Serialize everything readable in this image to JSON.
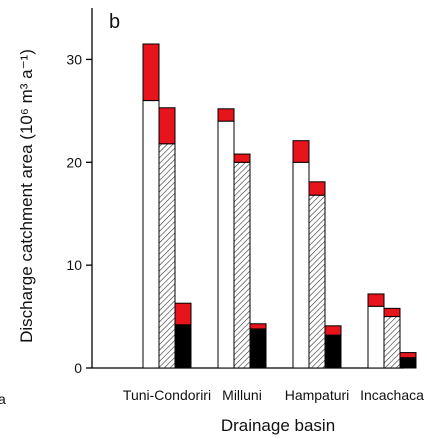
{
  "chart_data": {
    "type": "bar",
    "panel_label": "b",
    "xlabel": "Drainage basin",
    "ylabel": "Discharge catchment area (10⁶ m³ a⁻¹)",
    "ylim": [
      0,
      35
    ],
    "yticks": [
      0,
      10,
      20,
      30
    ],
    "cut_label": "a",
    "categories": [
      "Tuni-Condoriri",
      "Milluni",
      "Hampaturi",
      "Incachaca"
    ],
    "series": [
      {
        "base_pattern": "white",
        "base_values": [
          26.0,
          24.0,
          20.0,
          6.0
        ],
        "totals": [
          31.5,
          25.2,
          22.1,
          7.2
        ]
      },
      {
        "base_pattern": "hatched",
        "base_values": [
          21.8,
          20.0,
          16.8,
          5.0
        ],
        "totals": [
          25.3,
          20.8,
          18.1,
          5.8
        ]
      },
      {
        "base_pattern": "black",
        "base_values": [
          4.2,
          3.8,
          3.2,
          1.0
        ],
        "totals": [
          6.3,
          4.3,
          4.1,
          1.5
        ]
      }
    ],
    "upper_color": "#e8141b"
  }
}
